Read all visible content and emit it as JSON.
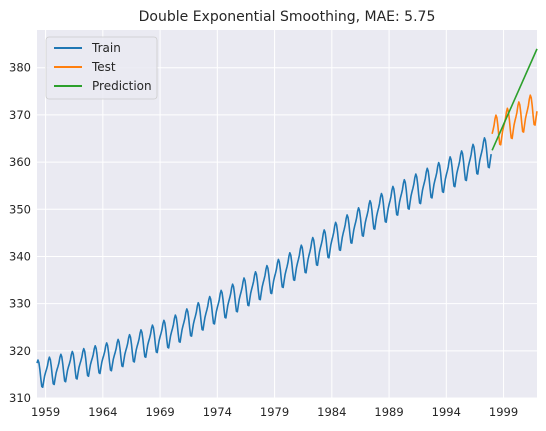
{
  "chart_data": {
    "type": "line",
    "title": "Double Exponential Smoothing, MAE: 5.75",
    "xlabel": "",
    "ylabel": "",
    "xlim": [
      1958.25,
      2001.92
    ],
    "ylim": [
      310,
      388
    ],
    "x_ticks": [
      1959,
      1964,
      1969,
      1974,
      1979,
      1984,
      1989,
      1994,
      1999
    ],
    "y_ticks": [
      310,
      320,
      330,
      340,
      350,
      360,
      370,
      380
    ],
    "grid": true,
    "legend_position": "top-left",
    "seasonal_pattern": {
      "description": "monthly seasonal offsets (Jan..Dec)",
      "offsets": [
        0.0,
        0.6,
        1.3,
        2.4,
        3.0,
        2.4,
        0.9,
        -1.1,
        -2.8,
        -3.0,
        -1.8,
        -0.7
      ]
    },
    "series": [
      {
        "name": "Train",
        "color": "#1f77b4",
        "x_start": 1958.25,
        "x_end": 1997.92,
        "step": 0.083333,
        "trend_anchors": [
          [
            1958.25,
            315.0
          ],
          [
            1965.0,
            319.0
          ],
          [
            1970.0,
            324.0
          ],
          [
            1975.0,
            330.5
          ],
          [
            1980.0,
            337.0
          ],
          [
            1985.0,
            345.0
          ],
          [
            1990.0,
            352.5
          ],
          [
            1995.0,
            358.5
          ],
          [
            1997.92,
            362.5
          ]
        ]
      },
      {
        "name": "Test",
        "color": "#ff7f0e",
        "x_start": 1998.0,
        "x_end": 2001.92,
        "step": 0.083333,
        "trend_anchors": [
          [
            1998.0,
            366.0
          ],
          [
            1999.0,
            367.5
          ],
          [
            2000.0,
            368.8
          ],
          [
            2001.0,
            370.2
          ],
          [
            2001.92,
            371.6
          ]
        ]
      },
      {
        "name": "Prediction",
        "color": "#2ca02c",
        "x": [
          1998.0,
          2001.92
        ],
        "y": [
          362.5,
          384.0
        ]
      }
    ]
  }
}
